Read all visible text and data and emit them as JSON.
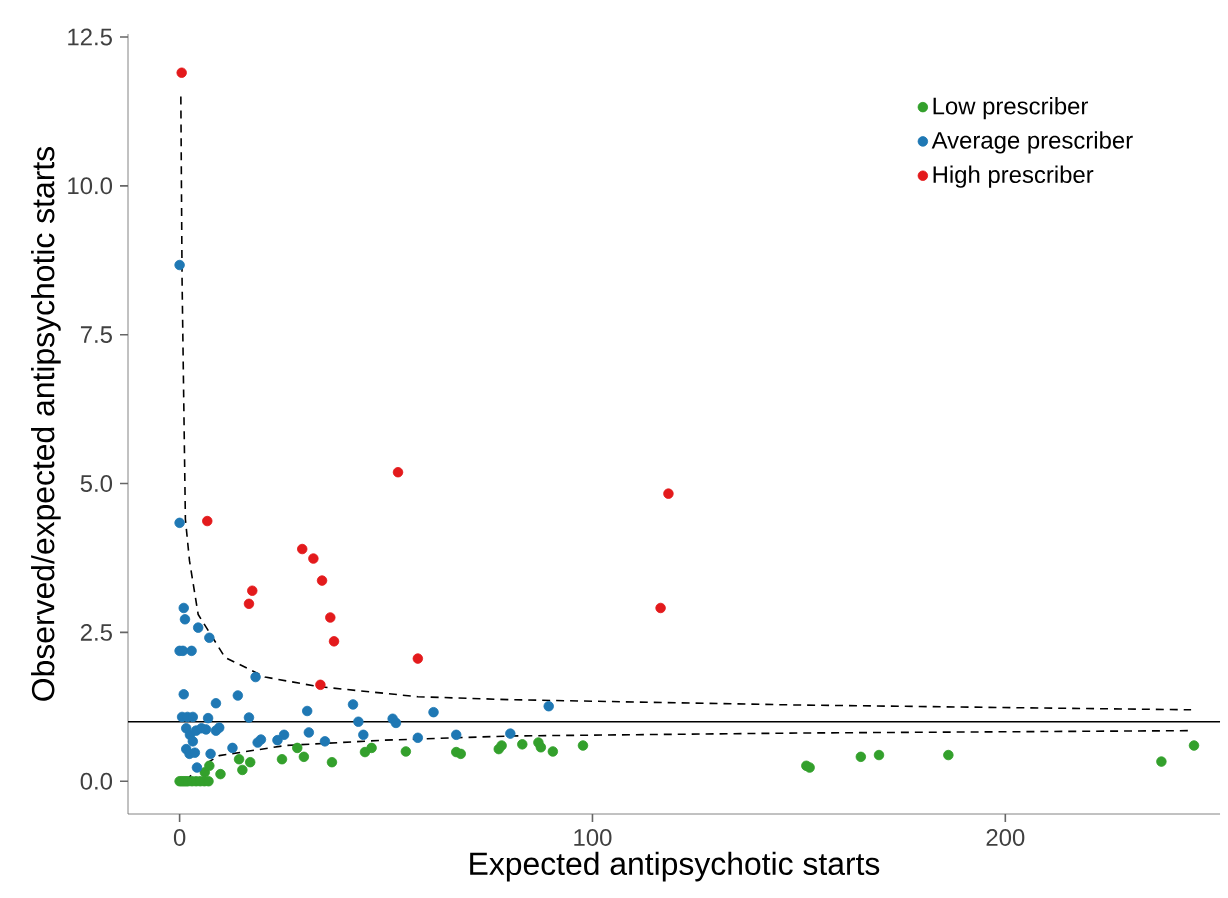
{
  "chart_data": {
    "type": "scatter",
    "xlabel": "Expected antipsychotic starts",
    "ylabel": "Observed/expected antipsychotic starts",
    "xlim": [
      -12.5,
      252
    ],
    "ylim": [
      -0.55,
      12.55
    ],
    "xticks": [
      0,
      100,
      200
    ],
    "yticks": [
      {
        "value": 0,
        "label": "0.0"
      },
      {
        "value": 2.5,
        "label": "2.5"
      },
      {
        "value": 5,
        "label": "5.0"
      },
      {
        "value": 7.5,
        "label": "7.5"
      },
      {
        "value": 10,
        "label": "10.0"
      },
      {
        "value": 12.5,
        "label": "12.5"
      }
    ],
    "grid": false,
    "legend": "top right",
    "ref_lines": [
      {
        "axis": "y",
        "value": 1,
        "color": "#000000",
        "line_style": "solid"
      }
    ],
    "series": [
      {
        "name": "Low prescriber",
        "color": "#33a02c",
        "x": [
          0,
          0.5,
          1,
          1.5,
          2,
          3,
          4,
          5,
          6,
          7,
          6.1,
          7.2,
          9.9,
          14.4,
          15.2,
          17.1,
          24.8,
          28.5,
          30.1,
          36.9,
          44.9,
          46.5,
          54.8,
          67,
          68.1,
          77.3,
          78,
          83,
          86.9,
          87.5,
          90.4,
          97.7,
          151.8,
          152.6,
          165,
          169.4,
          186.2,
          237.8,
          245.7
        ],
        "values": [
          0,
          0,
          0,
          0,
          0,
          0,
          0,
          0,
          0,
          0,
          0.15,
          0.26,
          0.12,
          0.37,
          0.19,
          0.32,
          0.37,
          0.56,
          0.41,
          0.32,
          0.49,
          0.56,
          0.5,
          0.49,
          0.46,
          0.54,
          0.6,
          0.62,
          0.65,
          0.57,
          0.5,
          0.6,
          0.26,
          0.23,
          0.41,
          0.44,
          0.44,
          0.33,
          0.6
        ]
      },
      {
        "name": "Average prescriber",
        "color": "#1f78b4",
        "x": [
          0,
          0,
          1.0,
          1.3,
          4.5,
          7.2,
          0,
          0.8,
          2.9,
          18.4,
          1.0,
          14.1,
          8.8,
          30.9,
          42,
          0.6,
          1.9,
          3.2,
          6.9,
          16.8,
          43.3,
          51.6,
          52.4,
          61.5,
          1.6,
          2.5,
          4,
          5.3,
          6.4,
          8.8,
          9.6,
          3.2,
          1.6,
          2.4,
          3.7,
          7.5,
          4.2,
          12.8,
          18.9,
          19.7,
          23.7,
          25.3,
          31.3,
          35.2,
          44.5,
          57.7,
          67,
          80.1,
          89.4
        ],
        "values": [
          8.67,
          4.34,
          2.91,
          2.72,
          2.58,
          2.41,
          2.19,
          2.19,
          2.19,
          1.75,
          1.46,
          1.44,
          1.31,
          1.18,
          1.29,
          1.08,
          1.08,
          1.08,
          1.06,
          1.07,
          1.0,
          1.05,
          0.98,
          1.16,
          0.89,
          0.78,
          0.85,
          0.89,
          0.87,
          0.85,
          0.9,
          0.67,
          0.54,
          0.46,
          0.48,
          0.46,
          0.23,
          0.56,
          0.65,
          0.7,
          0.69,
          0.78,
          0.82,
          0.67,
          0.78,
          0.73,
          0.78,
          0.8,
          1.26
        ]
      },
      {
        "name": "High prescriber",
        "color": "#e31a1c",
        "x": [
          0.5,
          6.7,
          52.9,
          29.7,
          32.4,
          34.5,
          17.6,
          16.8,
          36.5,
          37.4,
          57.7,
          34.1,
          118.4,
          116.5
        ],
        "values": [
          11.9,
          4.37,
          5.19,
          3.9,
          3.74,
          3.37,
          3.2,
          2.98,
          2.75,
          2.35,
          2.06,
          1.62,
          4.83,
          2.91
        ]
      },
      {
        "type": "line",
        "color": "#000000",
        "line_style": "dashed",
        "marker": "none",
        "x": [
          0.3,
          0.6,
          1.4,
          2.4,
          4.5,
          11,
          20.7,
          33.6,
          57.7,
          80,
          150,
          245
        ],
        "values": [
          11.5,
          8.4,
          4.4,
          3.7,
          2.8,
          2.08,
          1.75,
          1.59,
          1.42,
          1.37,
          1.28,
          1.2
        ]
      },
      {
        "type": "line",
        "color": "#000000",
        "line_style": "dashed",
        "marker": "none",
        "x": [
          1.5,
          4,
          9.6,
          25.6,
          49.7,
          80,
          150,
          245
        ],
        "values": [
          0,
          0.2,
          0.43,
          0.6,
          0.69,
          0.76,
          0.81,
          0.85
        ]
      }
    ]
  }
}
